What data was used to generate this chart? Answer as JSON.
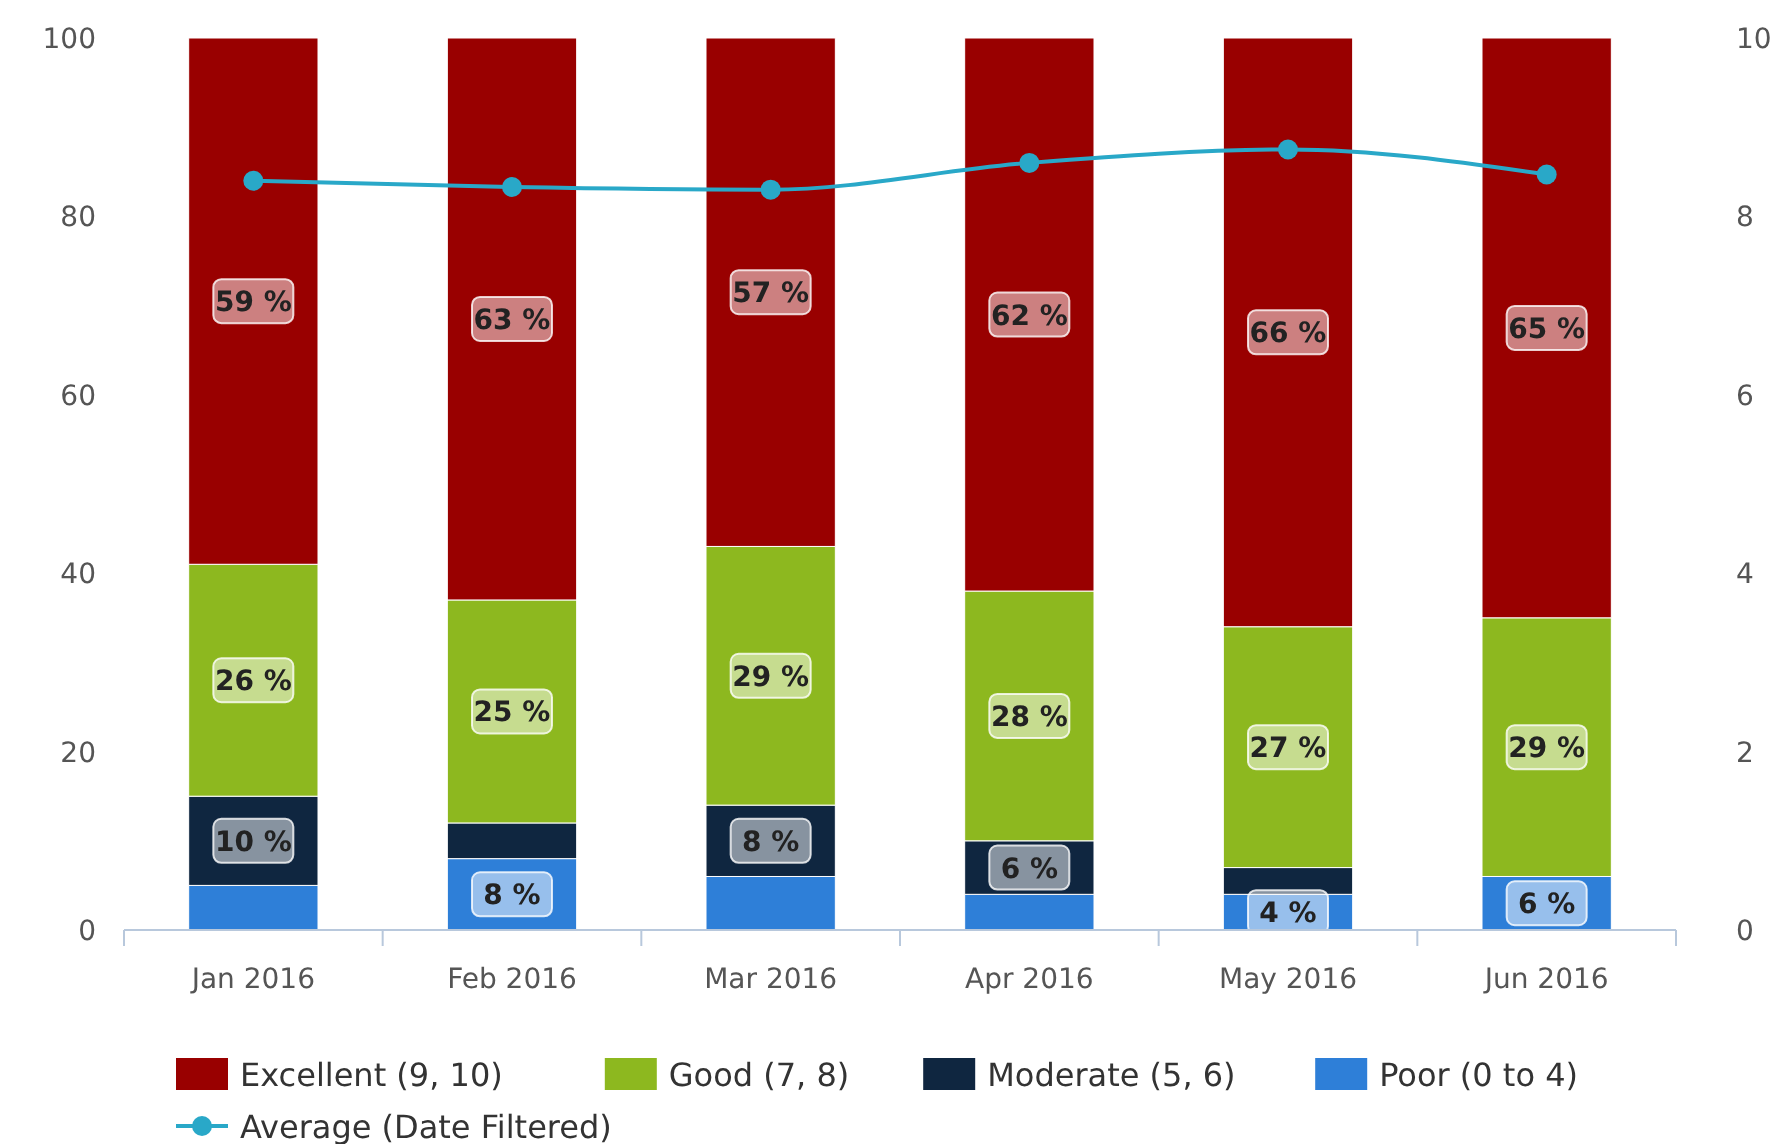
{
  "chart_data": {
    "type": "bar",
    "stacked": true,
    "categories": [
      "Jan 2016",
      "Feb 2016",
      "Mar 2016",
      "Apr 2016",
      "May 2016",
      "Jun 2016"
    ],
    "ylim": [
      0,
      100
    ],
    "yticks": [
      0,
      20,
      40,
      60,
      80,
      100
    ],
    "y2lim": [
      0,
      10
    ],
    "y2ticks": [
      0,
      2,
      4,
      6,
      8,
      10
    ],
    "grid": false,
    "legend": "bottom",
    "series": [
      {
        "name": "Poor (0 to 4)",
        "color": "#2e7fd8",
        "values": [
          5,
          8,
          6,
          4,
          4,
          6
        ],
        "value_labels": [
          null,
          "8 %",
          null,
          null,
          "4 %",
          "6 %"
        ]
      },
      {
        "name": "Moderate (5, 6)",
        "color": "#0f2640",
        "values": [
          10,
          4,
          8,
          6,
          3,
          0
        ],
        "value_labels": [
          "10 %",
          null,
          "8 %",
          "6 %",
          null,
          null
        ]
      },
      {
        "name": "Good (7, 8)",
        "color": "#8db81f",
        "values": [
          26,
          25,
          29,
          28,
          27,
          29
        ],
        "value_labels": [
          "26 %",
          "25 %",
          "29 %",
          "28 %",
          "27 %",
          "29 %"
        ]
      },
      {
        "name": "Excellent (9, 10)",
        "color": "#990000",
        "values": [
          59,
          63,
          57,
          62,
          66,
          65
        ],
        "value_labels": [
          "59 %",
          "63 %",
          "57 %",
          "62 %",
          "66 %",
          "65 %"
        ]
      },
      {
        "name": "Average (Date Filtered)",
        "type": "line",
        "axis": "y2",
        "marker": "circle",
        "color": "#29a8c8",
        "values": [
          8.4,
          8.33,
          8.3,
          8.6,
          8.75,
          8.47
        ]
      }
    ]
  }
}
